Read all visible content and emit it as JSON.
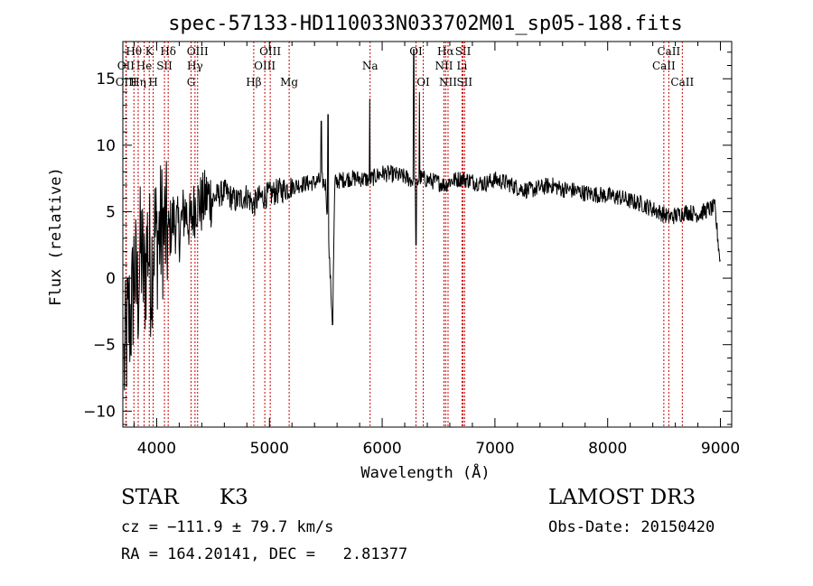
{
  "chart_data": {
    "type": "line",
    "title": "spec-57133-HD110033N033702M01_sp05-188.fits",
    "xlabel": "Wavelength (Å)",
    "ylabel": "Flux (relative)",
    "xlim": [
      3700,
      9100
    ],
    "ylim": [
      -11.2,
      17.8
    ],
    "x_ticks": [
      4000,
      5000,
      6000,
      7000,
      8000,
      9000
    ],
    "x_tick_labels": [
      "4000",
      "5000",
      "6000",
      "7000",
      "8000",
      "9000"
    ],
    "y_ticks": [
      -10,
      -5,
      0,
      5,
      10,
      15
    ],
    "y_tick_labels": [
      "−10",
      "−5",
      "0",
      "5",
      "10",
      "15"
    ],
    "grid": false,
    "series": [
      {
        "name": "flux",
        "x": [
          3700,
          3750,
          3780,
          3800,
          3830,
          3860,
          3890,
          3920,
          3950,
          3980,
          4000,
          4050,
          4100,
          4150,
          4200,
          4250,
          4300,
          4350,
          4400,
          4450,
          4500,
          4600,
          4700,
          4800,
          4860,
          4900,
          5000,
          5100,
          5200,
          5300,
          5400,
          5460,
          5500,
          5560,
          5580,
          5600,
          5700,
          5800,
          5890,
          5950,
          6000,
          6100,
          6200,
          6280,
          6300,
          6330,
          6400,
          6500,
          6560,
          6600,
          6700,
          6800,
          6900,
          7000,
          7100,
          7200,
          7300,
          7400,
          7500,
          7600,
          7700,
          7800,
          7900,
          8000,
          8100,
          8200,
          8300,
          8400,
          8450,
          8500,
          8540,
          8600,
          8662,
          8700,
          8800,
          8900,
          8950,
          9000
        ],
        "y": [
          -7.5,
          -3.2,
          -2.5,
          1.0,
          -1.5,
          2.5,
          -0.5,
          3.0,
          0.5,
          3.5,
          2.8,
          3.8,
          3.2,
          4.5,
          3.5,
          5.2,
          4.0,
          5.8,
          5.5,
          6.2,
          6.0,
          6.5,
          5.8,
          6.2,
          5.5,
          6.0,
          6.3,
          6.6,
          6.9,
          7.1,
          7.2,
          7.4,
          7.0,
          -3.5,
          7.2,
          7.3,
          7.5,
          7.5,
          7.4,
          7.7,
          7.9,
          7.8,
          7.6,
          7.3,
          6.9,
          7.6,
          7.4,
          7.2,
          7.0,
          7.3,
          7.5,
          7.3,
          7.1,
          7.4,
          7.2,
          6.8,
          6.6,
          6.8,
          7.0,
          6.7,
          6.6,
          6.4,
          6.3,
          6.2,
          6.1,
          5.8,
          5.6,
          5.2,
          5.0,
          4.8,
          4.6,
          4.7,
          4.9,
          5.0,
          4.8,
          5.2,
          5.3,
          1.0
        ]
      }
    ],
    "lines": [
      {
        "name": "Hθ",
        "wavelength": 3798,
        "row": 1
      },
      {
        "name": "OII",
        "wavelength": 3727,
        "row": 2
      },
      {
        "name": "OIII",
        "wavelength": 3730,
        "row": 3
      },
      {
        "name": "He",
        "wavelength": 3889,
        "row": 2
      },
      {
        "name": "Hη",
        "wavelength": 3836,
        "row": 3
      },
      {
        "name": "K",
        "wavelength": 3934,
        "row": 1
      },
      {
        "name": "H",
        "wavelength": 3969,
        "row": 3
      },
      {
        "name": "SII",
        "wavelength": 4069,
        "row": 2
      },
      {
        "name": "Hδ",
        "wavelength": 4102,
        "row": 1
      },
      {
        "name": "OIII",
        "wavelength": 4363,
        "row": 1
      },
      {
        "name": "Hγ",
        "wavelength": 4340,
        "row": 2
      },
      {
        "name": "G",
        "wavelength": 4305,
        "row": 3
      },
      {
        "name": "Hβ",
        "wavelength": 4861,
        "row": 3
      },
      {
        "name": "OIII",
        "wavelength": 4959,
        "row": 2
      },
      {
        "name": "OIII",
        "wavelength": 5007,
        "row": 1
      },
      {
        "name": "Mg",
        "wavelength": 5175,
        "row": 3
      },
      {
        "name": "Na",
        "wavelength": 5893,
        "row": 2
      },
      {
        "name": "OI",
        "wavelength": 6300,
        "row": 1
      },
      {
        "name": "OI",
        "wavelength": 6364,
        "row": 3
      },
      {
        "name": "Hα",
        "wavelength": 6563,
        "row": 1
      },
      {
        "name": "NII",
        "wavelength": 6548,
        "row": 2
      },
      {
        "name": "NII",
        "wavelength": 6584,
        "row": 3
      },
      {
        "name": "SII",
        "wavelength": 6717,
        "row": 1
      },
      {
        "name": "Li",
        "wavelength": 6708,
        "row": 2
      },
      {
        "name": "SII",
        "wavelength": 6731,
        "row": 3
      },
      {
        "name": "CaII",
        "wavelength": 8542,
        "row": 1
      },
      {
        "name": "CaII",
        "wavelength": 8498,
        "row": 2
      },
      {
        "name": "CaII",
        "wavelength": 8662,
        "row": 3
      }
    ]
  },
  "info": {
    "object_class": "STAR",
    "subclass": "K3",
    "survey": "LAMOST DR3",
    "velocity": "cz = −111.9 ± 79.7 km/s",
    "obs_date": "Obs-Date: 20150420",
    "coords": "RA = 164.20141, DEC =   2.81377"
  },
  "colors": {
    "spectrum": "#000000",
    "line_markers": "#cc0000",
    "axes": "#000000"
  }
}
